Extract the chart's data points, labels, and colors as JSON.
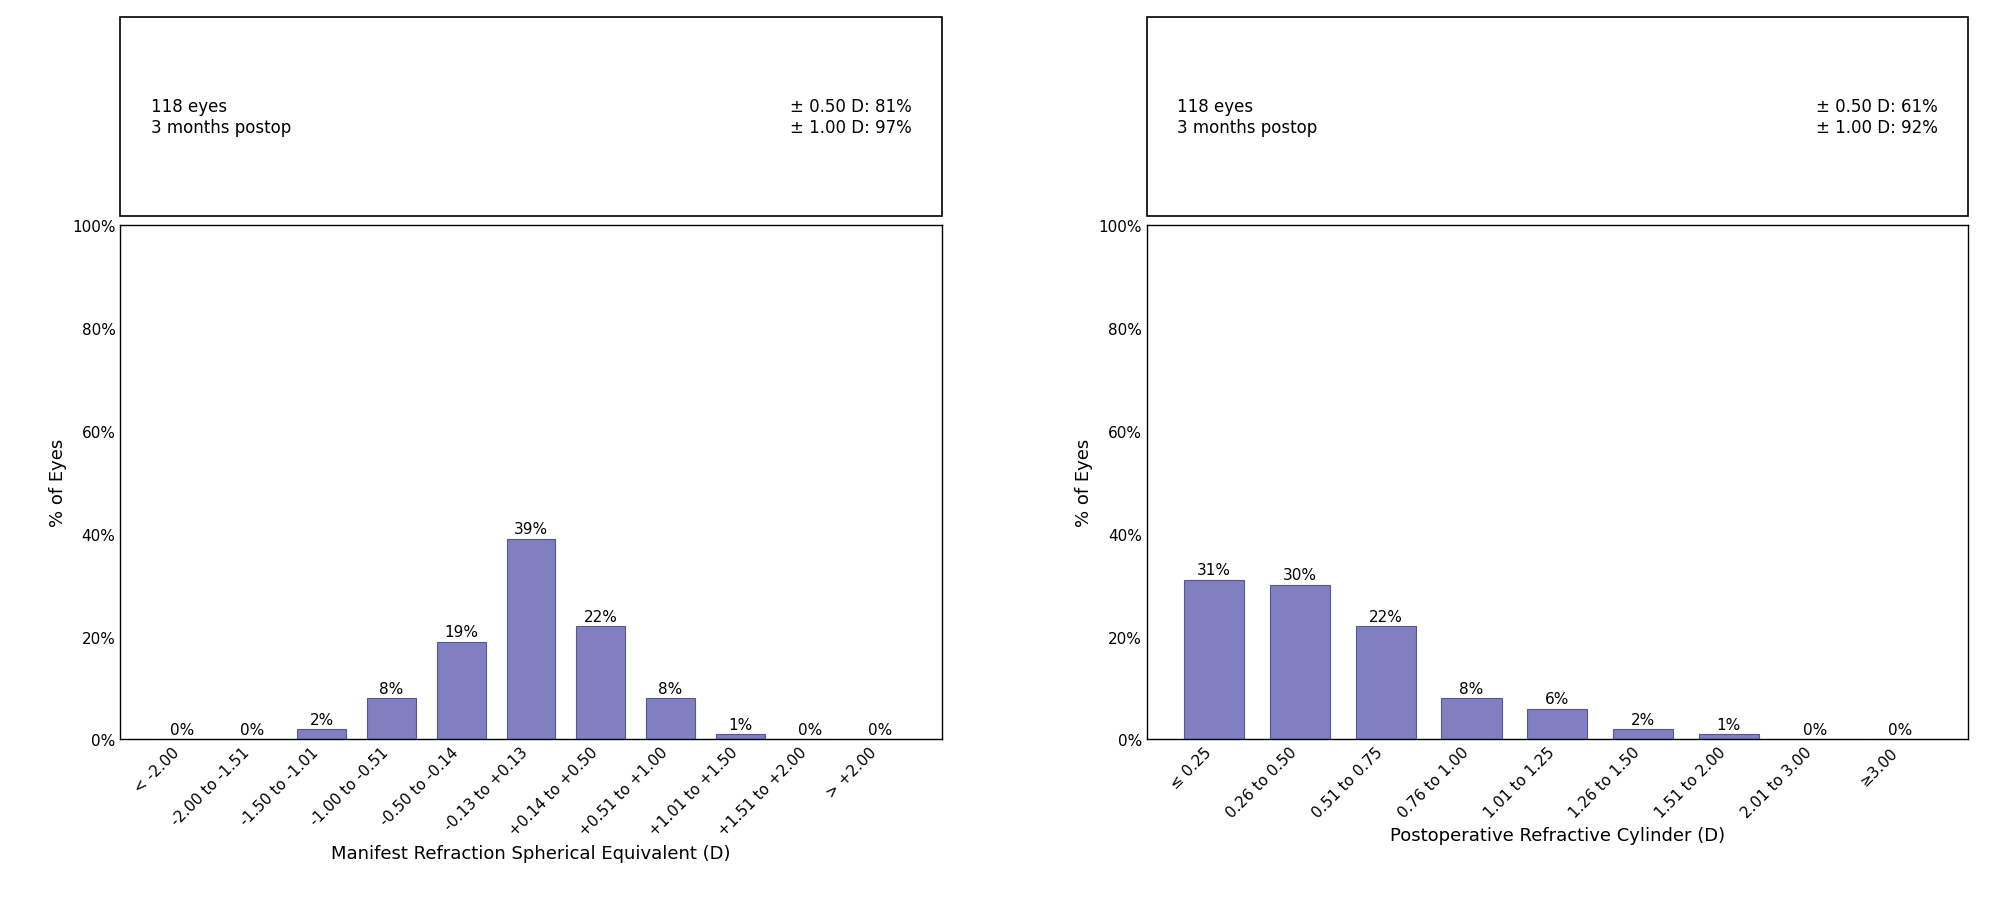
{
  "left": {
    "categories": [
      "< -2.00",
      "-2.00 to -1.51",
      "-1.50 to -1.01",
      "-1.00 to -0.51",
      "-0.50 to -0.14",
      "-0.13 to +0.13",
      "+0.14 to +0.50",
      "+0.51 to +1.00",
      "+1.01 to +1.50",
      "+1.51 to +2.00",
      "> +2.00"
    ],
    "values": [
      0,
      0,
      2,
      8,
      19,
      39,
      22,
      8,
      1,
      0,
      0
    ],
    "xlabel": "Manifest Refraction Spherical Equivalent (D)",
    "ylabel": "% of Eyes",
    "info_left": "118 eyes\n3 months postop",
    "info_right": "± 0.50 D: 81%\n± 1.00 D: 97%",
    "ylim": [
      0,
      100
    ],
    "yticks": [
      0,
      20,
      40,
      60,
      80,
      100
    ]
  },
  "right": {
    "categories": [
      "≤ 0.25",
      "0.26 to 0.50",
      "0.51 to 0.75",
      "0.76 to 1.00",
      "1.01 to 1.25",
      "1.26 to 1.50",
      "1.51 to 2.00",
      "2.01 to 3.00",
      "≥3.00"
    ],
    "values": [
      31,
      30,
      22,
      8,
      6,
      2,
      1,
      0,
      0
    ],
    "xlabel": "Postoperative Refractive Cylinder (D)",
    "ylabel": "% of Eyes",
    "info_left": "118 eyes\n3 months postop",
    "info_right": "± 0.50 D: 61%\n± 1.00 D: 92%",
    "ylim": [
      0,
      100
    ],
    "yticks": [
      0,
      20,
      40,
      60,
      80,
      100
    ]
  },
  "bar_color": "#8080c0",
  "bar_edgecolor": "#5555a0",
  "background_color": "#ffffff",
  "figsize": [
    20.08,
    9.03
  ],
  "dpi": 100
}
